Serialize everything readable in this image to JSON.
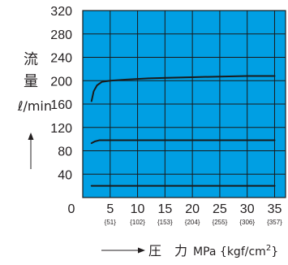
{
  "chart_data": {
    "type": "line",
    "ylabel": {
      "chars": [
        "流",
        "量"
      ],
      "unit": "ℓ/min"
    },
    "xlabel": {
      "prefix": "圧　力",
      "unit": "MPa {kgf/cm",
      "sup": "2",
      "suffix": "}"
    },
    "xlim": [
      0,
      37
    ],
    "ylim": [
      0,
      320
    ],
    "x_ticks": [
      {
        "value": 0,
        "label": "0",
        "sub": ""
      },
      {
        "value": 5,
        "label": "5",
        "sub": "{51}"
      },
      {
        "value": 10,
        "label": "10",
        "sub": "{102}"
      },
      {
        "value": 15,
        "label": "15",
        "sub": "{153}"
      },
      {
        "value": 20,
        "label": "20",
        "sub": "{204}"
      },
      {
        "value": 25,
        "label": "25",
        "sub": "{255}"
      },
      {
        "value": 30,
        "label": "30",
        "sub": "{306}"
      },
      {
        "value": 35,
        "label": "35",
        "sub": "{357}"
      }
    ],
    "y_ticks": [
      {
        "value": 40,
        "label": "40"
      },
      {
        "value": 80,
        "label": "80"
      },
      {
        "value": 120,
        "label": "120"
      },
      {
        "value": 160,
        "label": "160"
      },
      {
        "value": 200,
        "label": "200"
      },
      {
        "value": 240,
        "label": "240"
      },
      {
        "value": 280,
        "label": "280"
      },
      {
        "value": 320,
        "label": "320"
      }
    ],
    "grid": true,
    "plot_background": "#009fe3",
    "grid_color": "#1a1a1a",
    "line_color": "#1a1a1a",
    "series": [
      {
        "x": [
          1.6,
          2.0,
          2.6,
          3.5,
          5,
          8,
          12,
          16,
          20,
          25,
          30,
          35
        ],
        "y": [
          165,
          182,
          192,
          198,
          200,
          202,
          204,
          205,
          206,
          207,
          208,
          208
        ]
      },
      {
        "x": [
          1.6,
          2.2,
          3.0,
          5,
          10,
          20,
          30,
          35
        ],
        "y": [
          93,
          96,
          98,
          98,
          98,
          98,
          98,
          98
        ]
      },
      {
        "x": [
          1.6,
          5,
          10,
          20,
          30,
          35
        ],
        "y": [
          20,
          20,
          20,
          20,
          20,
          20
        ]
      }
    ]
  }
}
